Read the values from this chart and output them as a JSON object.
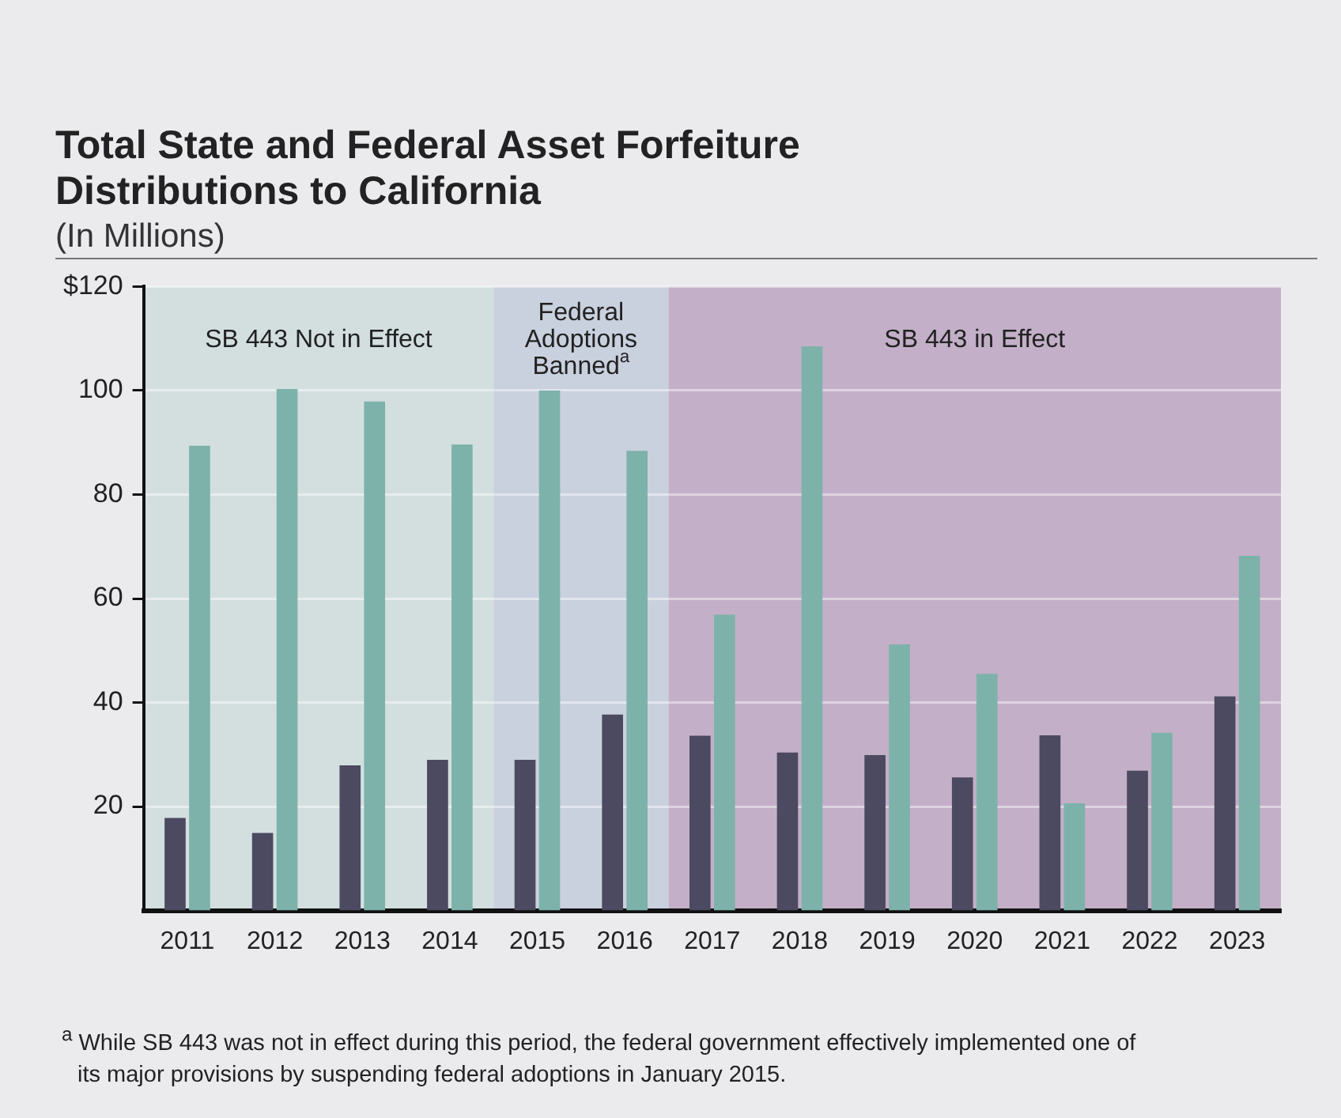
{
  "chart_data": {
    "type": "bar",
    "title": "Total State and Federal Asset Forfeiture Distributions to California",
    "subtitle": "(In Millions)",
    "categories": [
      "2011",
      "2012",
      "2013",
      "2014",
      "2015",
      "2016",
      "2017",
      "2018",
      "2019",
      "2020",
      "2021",
      "2022",
      "2023"
    ],
    "series": [
      {
        "color": "#4b4a60",
        "values": [
          17.8,
          14.9,
          27.9,
          29.0,
          29.0,
          37.7,
          33.6,
          30.4,
          29.9,
          25.6,
          33.7,
          26.9,
          41.2
        ]
      },
      {
        "color": "#7db2aa",
        "values": [
          89.4,
          100.3,
          97.9,
          89.6,
          100.0,
          88.4,
          56.9,
          108.5,
          51.2,
          45.5,
          20.6,
          34.2,
          68.2
        ]
      }
    ],
    "ylim": [
      0,
      120
    ],
    "yticks": [
      20,
      40,
      60,
      80,
      100,
      {
        "value": 120,
        "label": "$120"
      }
    ],
    "grid": "y",
    "legend": false,
    "bands": [
      {
        "axis": "x",
        "from": "2011",
        "to": "2014",
        "label": "SB 443 Not in Effect",
        "color": "#d3dfdf"
      },
      {
        "axis": "x",
        "from": "2015",
        "to": "2016",
        "label": "Federal Adoptions Banned$^{a}$",
        "color": "#c9d0de"
      },
      {
        "axis": "x",
        "from": "2017",
        "to": "2023",
        "label": "SB 443 in Effect",
        "color": "#c3afc7"
      }
    ],
    "annotations": [
      "$^{a}$ While SB 443 was not in effect during this period, the federal government effectively implemented one of its major provisions by suspending federal adoptions in January 2015."
    ]
  }
}
